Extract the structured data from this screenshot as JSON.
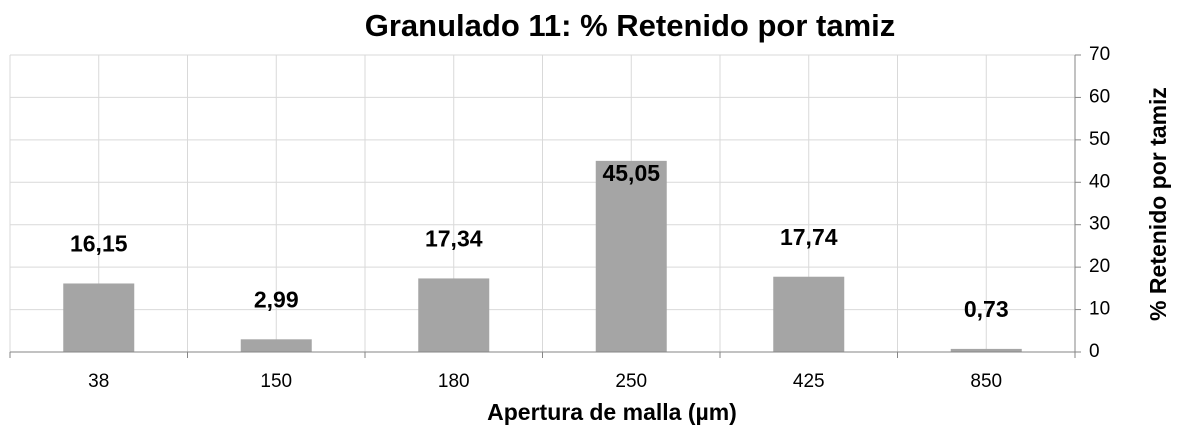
{
  "chart_data": {
    "type": "bar",
    "title": "Granulado 11: % Retenido por tamiz",
    "x_label": "Apertura de malla (µm)",
    "y_label": "% Retenido por tamiz",
    "categories": [
      "38",
      "150",
      "180",
      "250",
      "425",
      "850"
    ],
    "values": [
      16.15,
      2.99,
      17.34,
      45.05,
      17.74,
      0.73
    ],
    "value_labels": [
      "16,15",
      "2,99",
      "17,34",
      "45,05",
      "17,74",
      "0,73"
    ],
    "color": "#a5a5a5",
    "y_axis_side": "right",
    "ylim": [
      0,
      70
    ],
    "yticks": [
      0,
      10,
      20,
      30,
      40,
      50,
      60,
      70
    ],
    "grid": true
  }
}
